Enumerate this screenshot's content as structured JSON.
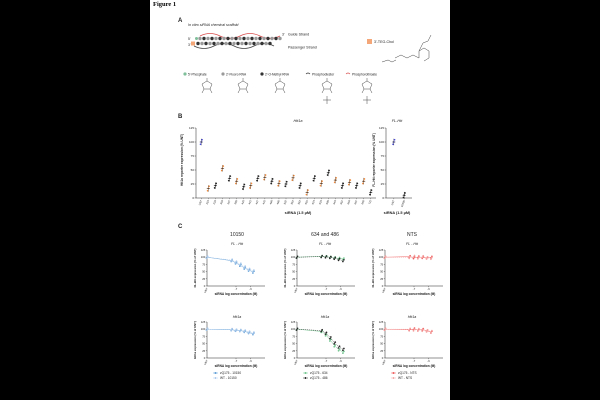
{
  "figure_title": "Figure 1",
  "panel_a": {
    "label": "A",
    "scaffold_title": "In vitro siRNA chemical scaffold",
    "guide_label": "Guide Strand",
    "passenger_label": "Passenger Strand",
    "five_prime": "5'",
    "three_prime": "3'",
    "chol_label": "3'-TEG-Chol",
    "legend": [
      "5'-Phosphate",
      "2'-Fluoro RNA",
      "2'-O-Methyl RNA",
      "Phosphodiester",
      "Phosphorothioate"
    ],
    "colors": {
      "guide": "#d94f4f",
      "passenger": "#444444",
      "fluoro": "#9a9a9a",
      "omethyl": "#333333",
      "phosphate": "#7fbf9a",
      "chol": "#f4a87a"
    }
  },
  "panel_b": {
    "label": "B",
    "left_title": "Htt1a",
    "right_title": "FL-Htt",
    "left_ylabel": "Htt1a reporter expression (% UNT)",
    "right_ylabel": "FL-Htt reporter expression (% UNT)",
    "xlabel": "siRNA (1.5 μM)",
    "right_xlabel": "siRNA (1.5 μM)"
  },
  "panel_c": {
    "label": "C",
    "col_titles": [
      "10150",
      "634 and 486",
      "NTS"
    ],
    "row_titles": [
      "FL - Htt",
      "Htt1a"
    ],
    "row_ylabels": [
      "FL-Htt expression (% of UNT)",
      "Htt1a expression (% of UNT)"
    ],
    "xlabel": "siRNA log concentration (M)",
    "legends": [
      [
        {
          "name": "zQ175 - 10150",
          "color": "#5b9bd5"
        },
        {
          "name": "WT - 10150",
          "color": "#a9c8ea"
        }
      ],
      [
        {
          "name": "zQ175 - 634",
          "color": "#6cc38a"
        },
        {
          "name": "zQ175 - 486",
          "color": "#222222"
        }
      ],
      [
        {
          "name": "zQ175 - NTS",
          "color": "#ef5a5a"
        },
        {
          "name": "WT - NTS",
          "color": "#f4a3a3"
        }
      ]
    ]
  },
  "chart_data": [
    {
      "type": "scatter",
      "panel": "B-left",
      "title": "Htt1a",
      "ylabel": "Htt1a reporter expression (% UNT)",
      "xlabel": "siRNA (1.5 μM)",
      "ylim": [
        0,
        125
      ],
      "yticks": [
        0,
        25,
        50,
        75,
        100,
        125
      ],
      "categories": [
        "UNT",
        "216",
        "233",
        "303",
        "347",
        "385",
        "426",
        "441",
        "447",
        "478",
        "486",
        "488",
        "532",
        "551",
        "581",
        "610",
        "624",
        "634",
        "665",
        "644",
        "657",
        "664",
        "667",
        "669",
        "711"
      ],
      "values": [
        100,
        17,
        22,
        53,
        35,
        30,
        20,
        22,
        35,
        37,
        30,
        26,
        25,
        36,
        22,
        10,
        35,
        26,
        45,
        32,
        22,
        28,
        22,
        30,
        10
      ],
      "colors": [
        "#4a4adb",
        "#f08a3c",
        "#222222",
        "#f08a3c",
        "#222222",
        "#f08a3c",
        "#222222",
        "#f08a3c",
        "#222222",
        "#f08a3c",
        "#222222",
        "#f08a3c",
        "#222222",
        "#f08a3c",
        "#222222",
        "#f08a3c",
        "#222222",
        "#f08a3c",
        "#222222",
        "#f08a3c",
        "#222222",
        "#f08a3c",
        "#222222",
        "#f08a3c",
        "#222222"
      ]
    },
    {
      "type": "scatter",
      "panel": "B-right",
      "title": "FL-Htt",
      "ylabel": "FL-Htt reporter expression (% UNT)",
      "xlabel": "siRNA (1.5 μM)",
      "ylim": [
        0,
        125
      ],
      "yticks": [
        0,
        25,
        50,
        75,
        100,
        125
      ],
      "categories": [
        "UNT",
        "10150"
      ],
      "values": [
        100,
        5
      ],
      "colors": [
        "#4a4adb",
        "#222222"
      ]
    },
    {
      "type": "line",
      "panel": "C-10150-FL",
      "xlabel": "siRNA log concentration (M)",
      "ylabel": "FL-Htt expression (% of UNT)",
      "xlim": [
        -9,
        -5
      ],
      "ylim": [
        0,
        125
      ],
      "yticks": [
        0,
        25,
        50,
        75,
        100,
        125
      ],
      "xticks": [
        -7,
        -6
      ],
      "series": [
        {
          "name": "zQ175 - 10150",
          "color": "#5b9bd5",
          "x": [
            -9,
            -7.3,
            -7,
            -6.7,
            -6.4,
            -6.1,
            -5.8
          ],
          "y": [
            100,
            88,
            80,
            72,
            62,
            55,
            48
          ]
        },
        {
          "name": "WT - 10150",
          "color": "#a9c8ea",
          "x": [
            -9,
            -7.3,
            -7,
            -6.7,
            -6.4,
            -6.1,
            -5.8
          ],
          "y": [
            100,
            90,
            83,
            76,
            66,
            58,
            52
          ]
        }
      ]
    },
    {
      "type": "line",
      "panel": "C-634and486-FL",
      "xlabel": "siRNA log concentration (M)",
      "ylabel": "FL-Htt expression (% of UNT)",
      "xlim": [
        -9,
        -5
      ],
      "ylim": [
        0,
        125
      ],
      "yticks": [
        0,
        25,
        50,
        75,
        100,
        125
      ],
      "xticks": [
        -7,
        -6
      ],
      "series": [
        {
          "name": "zQ175 - 634",
          "color": "#6cc38a",
          "x": [
            -9,
            -7.3,
            -7,
            -6.7,
            -6.4,
            -6.1,
            -5.8
          ],
          "y": [
            100,
            103,
            102,
            100,
            98,
            96,
            94
          ]
        },
        {
          "name": "zQ175 - 486",
          "color": "#222222",
          "x": [
            -9,
            -7.3,
            -7,
            -6.7,
            -6.4,
            -6.1,
            -5.8
          ],
          "y": [
            100,
            102,
            101,
            99,
            96,
            92,
            88
          ]
        }
      ]
    },
    {
      "type": "line",
      "panel": "C-NTS-FL",
      "xlabel": "siRNA log concentration (M)",
      "ylabel": "FL-Htt expression (% of UNT)",
      "xlim": [
        -9,
        -5
      ],
      "ylim": [
        0,
        125
      ],
      "yticks": [
        0,
        25,
        50,
        75,
        100,
        125
      ],
      "xticks": [
        -7,
        -6
      ],
      "series": [
        {
          "name": "zQ175 - NTS",
          "color": "#ef5a5a",
          "x": [
            -9,
            -7.3,
            -7,
            -6.7,
            -6.4,
            -6.1,
            -5.8
          ],
          "y": [
            100,
            102,
            98,
            101,
            99,
            97,
            100
          ]
        },
        {
          "name": "WT - NTS",
          "color": "#f4a3a3",
          "x": [
            -9,
            -7.3,
            -7,
            -6.7,
            -6.4,
            -6.1,
            -5.8
          ],
          "y": [
            100,
            99,
            103,
            97,
            102,
            98,
            96
          ]
        }
      ]
    },
    {
      "type": "line",
      "panel": "C-10150-Htt1a",
      "xlabel": "siRNA log concentration (M)",
      "ylabel": "Htt1a expression (% of UNT)",
      "xlim": [
        -9,
        -5
      ],
      "ylim": [
        0,
        125
      ],
      "yticks": [
        0,
        25,
        50,
        75,
        100,
        125
      ],
      "xticks": [
        -7,
        -6
      ],
      "series": [
        {
          "name": "zQ175 - 10150",
          "color": "#5b9bd5",
          "x": [
            -9,
            -7.3,
            -7,
            -6.7,
            -6.4,
            -6.1,
            -5.8
          ],
          "y": [
            100,
            98,
            96,
            95,
            92,
            88,
            84
          ]
        },
        {
          "name": "WT - 10150",
          "color": "#a9c8ea",
          "x": [
            -9,
            -7.3,
            -7,
            -6.7,
            -6.4,
            -6.1,
            -5.8
          ],
          "y": [
            100,
            99,
            97,
            96,
            94,
            90,
            87
          ]
        }
      ]
    },
    {
      "type": "line",
      "panel": "C-634and486-Htt1a",
      "xlabel": "siRNA log concentration (M)",
      "ylabel": "Htt1a expression (% of UNT)",
      "xlim": [
        -9,
        -5
      ],
      "ylim": [
        0,
        125
      ],
      "yticks": [
        0,
        25,
        50,
        75,
        100,
        125
      ],
      "xticks": [
        -7,
        -6
      ],
      "series": [
        {
          "name": "zQ175 - 634",
          "color": "#6cc38a",
          "x": [
            -9,
            -7.3,
            -7,
            -6.7,
            -6.4,
            -6.1,
            -5.8
          ],
          "y": [
            100,
            92,
            80,
            62,
            42,
            28,
            20
          ]
        },
        {
          "name": "zQ175 - 486",
          "color": "#222222",
          "x": [
            -9,
            -7.3,
            -7,
            -6.7,
            -6.4,
            -6.1,
            -5.8
          ],
          "y": [
            100,
            95,
            86,
            70,
            52,
            38,
            30
          ]
        }
      ]
    },
    {
      "type": "line",
      "panel": "C-NTS-Htt1a",
      "xlabel": "siRNA log concentration (M)",
      "ylabel": "Htt1a expression (% of UNT)",
      "xlim": [
        -9,
        -5
      ],
      "ylim": [
        0,
        125
      ],
      "yticks": [
        0,
        25,
        50,
        75,
        100,
        125
      ],
      "xticks": [
        -7,
        -6
      ],
      "series": [
        {
          "name": "zQ175 - NTS",
          "color": "#ef5a5a",
          "x": [
            -9,
            -7.3,
            -7,
            -6.7,
            -6.4,
            -6.1,
            -5.8
          ],
          "y": [
            100,
            98,
            101,
            97,
            99,
            94,
            90
          ]
        },
        {
          "name": "WT - NTS",
          "color": "#f4a3a3",
          "x": [
            -9,
            -7.3,
            -7,
            -6.7,
            -6.4,
            -6.1,
            -5.8
          ],
          "y": [
            100,
            100,
            97,
            99,
            96,
            95,
            92
          ]
        }
      ]
    }
  ]
}
